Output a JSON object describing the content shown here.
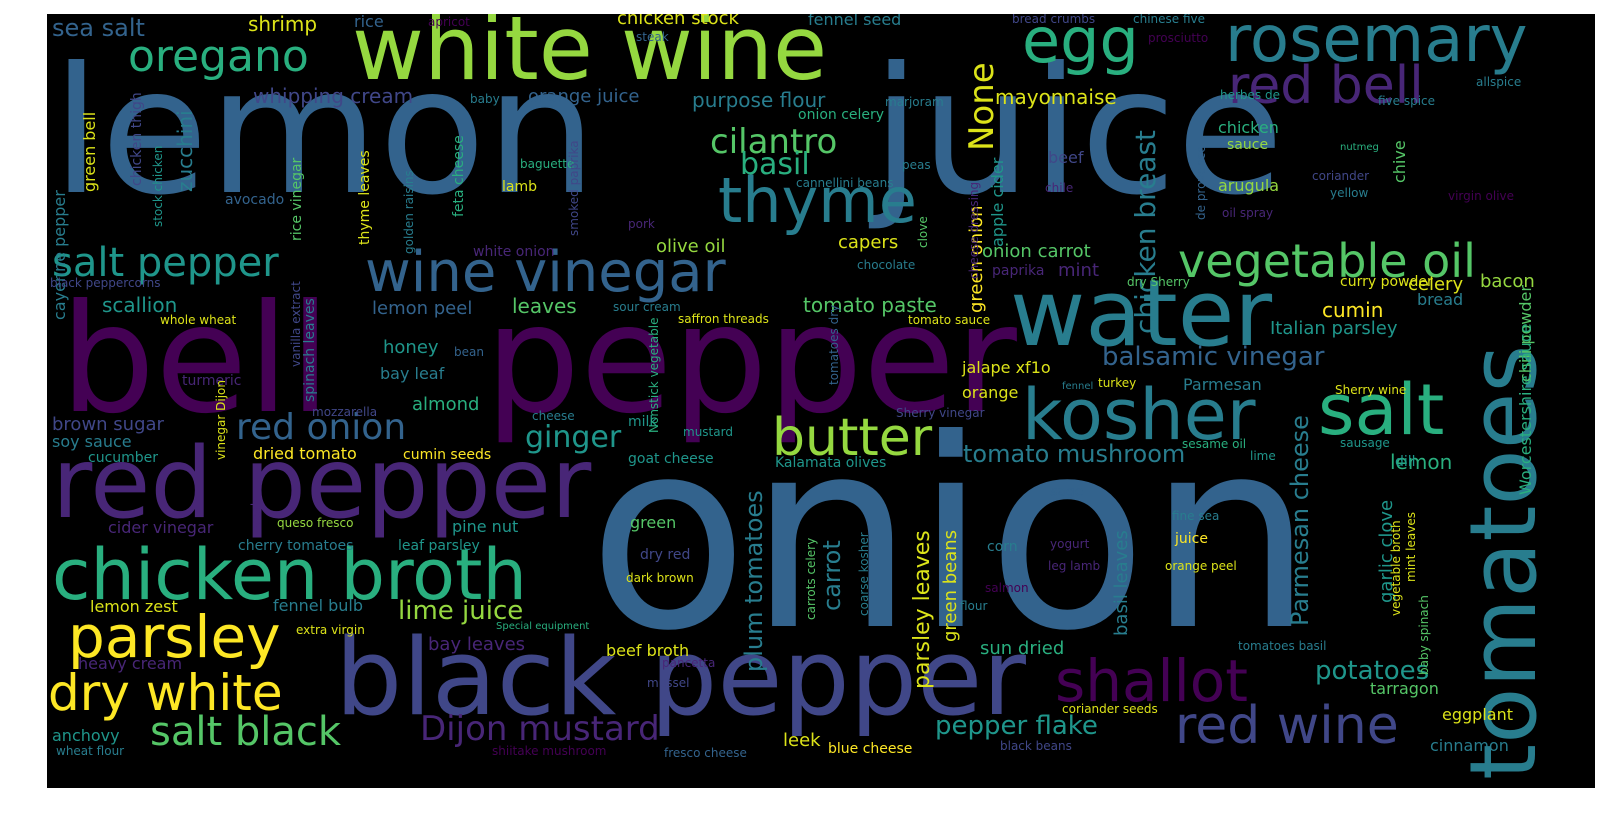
{
  "palette": [
    "#440154",
    "#482677",
    "#404788",
    "#33638d",
    "#287d8e",
    "#1f968b",
    "#29af7f",
    "#55c667",
    "#95d840",
    "#dce319",
    "#fde725"
  ],
  "words": [
    {
      "text": "lemon",
      "color": "#33638d",
      "icon": ""
    },
    {
      "text": "juice",
      "color": "#33638d"
    },
    {
      "text": "onion",
      "color": "#33638d"
    },
    {
      "text": "bell",
      "color": "#440154"
    },
    {
      "text": "pepper",
      "color": "#440154"
    },
    {
      "text": "white wine",
      "color": "#95d840"
    },
    {
      "text": "black pepper",
      "color": "#404788"
    },
    {
      "text": "red pepper",
      "color": "#482677"
    },
    {
      "text": "water",
      "color": "#287d8e"
    },
    {
      "text": "rosemary",
      "color": "#287d8e"
    },
    {
      "text": "kosher",
      "color": "#287d8e"
    },
    {
      "text": "salt",
      "color": "#29af7f"
    },
    {
      "text": "tomatoes",
      "color": "#287d8e"
    },
    {
      "text": "chicken broth",
      "color": "#29af7f"
    },
    {
      "text": "wine vinegar",
      "color": "#33638d"
    },
    {
      "text": "thyme",
      "color": "#287d8e"
    },
    {
      "text": "egg",
      "color": "#29af7f"
    },
    {
      "text": "red bell",
      "color": "#482677"
    },
    {
      "text": "vegetable oil",
      "color": "#55c667"
    },
    {
      "text": "shallot",
      "color": "#440154"
    },
    {
      "text": "parsley",
      "color": "#fde725"
    },
    {
      "text": "dry white",
      "color": "#fde725"
    },
    {
      "text": "butter",
      "color": "#95d840"
    },
    {
      "text": "red wine",
      "color": "#404788"
    },
    {
      "text": "salt pepper",
      "color": "#1f968b"
    },
    {
      "text": "oregano",
      "color": "#29af7f"
    },
    {
      "text": "salt black",
      "color": "#55c667"
    },
    {
      "text": "Dijon mustard",
      "color": "#482677"
    },
    {
      "text": "red onion",
      "color": "#33638d"
    },
    {
      "text": "None",
      "color": "#dce319"
    },
    {
      "text": "cilantro",
      "color": "#55c667"
    },
    {
      "text": "basil",
      "color": "#29af7f"
    },
    {
      "text": "ginger",
      "color": "#1f968b"
    },
    {
      "text": "chicken breast",
      "color": "#287d8e"
    },
    {
      "text": "balsamic vinegar",
      "color": "#33638d"
    },
    {
      "text": "Parmesan cheese",
      "color": "#287d8e"
    },
    {
      "text": "plum tomatoes",
      "color": "#287d8e"
    },
    {
      "text": "pepper flake",
      "color": "#1f968b"
    },
    {
      "text": "potatoes",
      "color": "#1f968b"
    },
    {
      "text": "tomato mushroom",
      "color": "#287d8e"
    },
    {
      "text": "carrot",
      "color": "#287d8e"
    },
    {
      "text": "parsley leaves",
      "color": "#dce319"
    },
    {
      "text": "lime juice",
      "color": "#95d840"
    },
    {
      "text": "sea salt",
      "color": "#33638d"
    },
    {
      "text": "shrimp",
      "color": "#dce319"
    },
    {
      "text": "whipping cream",
      "color": "#404788"
    },
    {
      "text": "orange juice",
      "color": "#33638d"
    },
    {
      "text": "purpose flour",
      "color": "#287d8e"
    },
    {
      "text": "mayonnaise",
      "color": "#dce319"
    },
    {
      "text": "chicken stock",
      "color": "#dce319"
    },
    {
      "text": "fennel seed",
      "color": "#287d8e"
    },
    {
      "text": "rice",
      "color": "#33638d"
    },
    {
      "text": "zucchini",
      "color": "#287d8e"
    },
    {
      "text": "green bell",
      "color": "#dce319"
    },
    {
      "text": "cayenne pepper",
      "color": "#287d8e"
    },
    {
      "text": "scallion",
      "color": "#1f968b"
    },
    {
      "text": "lemon peel",
      "color": "#33638d"
    },
    {
      "text": "leaves",
      "color": "#55c667"
    },
    {
      "text": "tomato paste",
      "color": "#55c667"
    },
    {
      "text": "cumin",
      "color": "#fde725"
    },
    {
      "text": "celery",
      "color": "#dce319"
    },
    {
      "text": "bacon",
      "color": "#95d840"
    },
    {
      "text": "Italian parsley",
      "color": "#1f968b"
    },
    {
      "text": "bread",
      "color": "#287d8e"
    },
    {
      "text": "olive oil",
      "color": "#95d840"
    },
    {
      "text": "capers",
      "color": "#dce319"
    },
    {
      "text": "onion carrot",
      "color": "#55c667"
    },
    {
      "text": "mint",
      "color": "#482677"
    },
    {
      "text": "green onion",
      "color": "#fde725"
    },
    {
      "text": "apple cider",
      "color": "#1f968b"
    },
    {
      "text": "honey",
      "color": "#1f968b"
    },
    {
      "text": "bay leaf",
      "color": "#287d8e"
    },
    {
      "text": "almond",
      "color": "#29af7f"
    },
    {
      "text": "brown sugar",
      "color": "#404788"
    },
    {
      "text": "soy sauce",
      "color": "#287d8e"
    },
    {
      "text": "cucumber",
      "color": "#1f968b"
    },
    {
      "text": "dried tomato",
      "color": "#fde725"
    },
    {
      "text": "cumin seeds",
      "color": "#fde725"
    },
    {
      "text": "jalape xf1o",
      "color": "#dce319"
    },
    {
      "text": "orange",
      "color": "#dce319"
    },
    {
      "text": "Parmesan",
      "color": "#287d8e"
    },
    {
      "text": "lemon",
      "color": "#29af7f"
    },
    {
      "text": "chili powder",
      "color": "#55c667"
    },
    {
      "text": "Worcestershire sauce",
      "color": "#29af7f"
    },
    {
      "text": "garlic clove",
      "color": "#1f968b"
    },
    {
      "text": "basil leaves",
      "color": "#287d8e"
    },
    {
      "text": "green beans",
      "color": "#dce319"
    },
    {
      "text": "sage",
      "color": "#33638d"
    },
    {
      "text": "dill",
      "color": "#1f968b"
    },
    {
      "text": "sun dried",
      "color": "#29af7f"
    },
    {
      "text": "eggplant",
      "color": "#dce319"
    },
    {
      "text": "tarragon",
      "color": "#55c667"
    },
    {
      "text": "cinnamon",
      "color": "#287d8e"
    },
    {
      "text": "leek",
      "color": "#dce319"
    },
    {
      "text": "beef broth",
      "color": "#dce319"
    },
    {
      "text": "bay leaves",
      "color": "#482677"
    },
    {
      "text": "lemon zest",
      "color": "#dce319"
    },
    {
      "text": "fennel bulb",
      "color": "#287d8e"
    },
    {
      "text": "pine nut",
      "color": "#1f968b"
    },
    {
      "text": "cider vinegar",
      "color": "#482677"
    },
    {
      "text": "cherry tomatoes",
      "color": "#287d8e"
    },
    {
      "text": "leaf parsley",
      "color": "#1f968b"
    },
    {
      "text": "anchovy",
      "color": "#1f968b"
    },
    {
      "text": "heavy cream",
      "color": "#482677"
    },
    {
      "text": "milk",
      "color": "#1f968b"
    },
    {
      "text": "green",
      "color": "#55c667"
    },
    {
      "text": "chicken",
      "color": "#29af7f"
    },
    {
      "text": "sauce",
      "color": "#95d840"
    },
    {
      "text": "arugula",
      "color": "#95d840"
    },
    {
      "text": "chive",
      "color": "#55c667"
    },
    {
      "text": "beef",
      "color": "#404788"
    },
    {
      "text": "curry powder",
      "color": "#dce319"
    },
    {
      "text": "turkey",
      "color": "#dce319"
    },
    {
      "text": "juice",
      "color": "#fde725"
    },
    {
      "text": "corn",
      "color": "#287d8e"
    },
    {
      "text": "orange peel",
      "color": "#dce319"
    },
    {
      "text": "coriander seeds",
      "color": "#dce319"
    },
    {
      "text": "blue cheese",
      "color": "#fde725"
    },
    {
      "text": "mustard",
      "color": "#1f968b"
    },
    {
      "text": "goat cheese",
      "color": "#1f968b"
    },
    {
      "text": "Kalamata olives",
      "color": "#1f968b"
    },
    {
      "text": "sesame oil",
      "color": "#29af7f"
    },
    {
      "text": "lime",
      "color": "#1f968b"
    },
    {
      "text": "vegetable broth",
      "color": "#dce319"
    },
    {
      "text": "mint leaves",
      "color": "#dce319"
    },
    {
      "text": "baby spinach",
      "color": "#55c667"
    },
    {
      "text": "Sherry wine",
      "color": "#dce319"
    },
    {
      "text": "sausage",
      "color": "#1f968b"
    },
    {
      "text": "apricot",
      "color": "#440154"
    },
    {
      "text": "steak",
      "color": "#33638d"
    },
    {
      "text": "bread crumbs",
      "color": "#404788"
    },
    {
      "text": "chinese five",
      "color": "#287d8e"
    },
    {
      "text": "prosciutto",
      "color": "#440154"
    },
    {
      "text": "herbes de",
      "color": "#1f968b"
    },
    {
      "text": "allspice",
      "color": "#287d8e"
    },
    {
      "text": "five spice",
      "color": "#287d8e"
    },
    {
      "text": "marjoram",
      "color": "#287d8e"
    },
    {
      "text": "baby",
      "color": "#287d8e"
    },
    {
      "text": "onion celery",
      "color": "#29af7f"
    },
    {
      "text": "nutmeg",
      "color": "#29af7f"
    },
    {
      "text": "coriander",
      "color": "#404788"
    },
    {
      "text": "yellow",
      "color": "#287d8e"
    },
    {
      "text": "virgin olive",
      "color": "#440154"
    },
    {
      "text": "oil spray",
      "color": "#482677"
    },
    {
      "text": "de provence",
      "color": "#33638d"
    },
    {
      "text": "chile",
      "color": "#482677"
    },
    {
      "text": "peas",
      "color": "#287d8e"
    },
    {
      "text": "cannellini beans",
      "color": "#287d8e"
    },
    {
      "text": "baguette",
      "color": "#29af7f"
    },
    {
      "text": "lamb",
      "color": "#dce319"
    },
    {
      "text": "feta cheese",
      "color": "#29af7f"
    },
    {
      "text": "golden raisins",
      "color": "#287d8e"
    },
    {
      "text": "smoked paprika",
      "color": "#404788"
    },
    {
      "text": "pork",
      "color": "#482677"
    },
    {
      "text": "rice vinegar",
      "color": "#55c667"
    },
    {
      "text": "thyme leaves",
      "color": "#dce319"
    },
    {
      "text": "avocado",
      "color": "#33638d"
    },
    {
      "text": "chicken thigh",
      "color": "#404788"
    },
    {
      "text": "stock chicken",
      "color": "#1f968b"
    },
    {
      "text": "white onion",
      "color": "#482677"
    },
    {
      "text": "chocolate",
      "color": "#287d8e"
    },
    {
      "text": "clove",
      "color": "#55c667"
    },
    {
      "text": "cheese dressing",
      "color": "#482677"
    },
    {
      "text": "paprika",
      "color": "#482677"
    },
    {
      "text": "dry Sherry",
      "color": "#55c667"
    },
    {
      "text": "black peppercorns",
      "color": "#404788"
    },
    {
      "text": "whole wheat",
      "color": "#dce319"
    },
    {
      "text": "vanilla extract",
      "color": "#404788"
    },
    {
      "text": "spinach leaves",
      "color": "#287d8e"
    },
    {
      "text": "sour cream",
      "color": "#287d8e"
    },
    {
      "text": "saffron threads",
      "color": "#dce319"
    },
    {
      "text": "tomato sauce",
      "color": "#dce319"
    },
    {
      "text": "tomatoes dry",
      "color": "#33638d"
    },
    {
      "text": "Nonstick vegetable",
      "color": "#29af7f"
    },
    {
      "text": "bean",
      "color": "#33638d"
    },
    {
      "text": "turmeric",
      "color": "#482677"
    },
    {
      "text": "vinegar Dijon",
      "color": "#dce319"
    },
    {
      "text": "mozzarella",
      "color": "#404788"
    },
    {
      "text": "cheese",
      "color": "#287d8e"
    },
    {
      "text": "fennel",
      "color": "#287d8e"
    },
    {
      "text": "Sherry vinegar",
      "color": "#404788"
    },
    {
      "text": "veal",
      "color": "#482677"
    },
    {
      "text": "queso fresco",
      "color": "#95d840"
    },
    {
      "text": "extra virgin",
      "color": "#dce319"
    },
    {
      "text": "Special equipment",
      "color": "#29af7f"
    },
    {
      "text": "dry red",
      "color": "#404788"
    },
    {
      "text": "dark brown",
      "color": "#dce319"
    },
    {
      "text": "carrots celery",
      "color": "#55c667"
    },
    {
      "text": "coarse kosher",
      "color": "#287d8e"
    },
    {
      "text": "salmon",
      "color": "#440154"
    },
    {
      "text": "flour",
      "color": "#287d8e"
    },
    {
      "text": "yogurt",
      "color": "#482677"
    },
    {
      "text": "leg lamb",
      "color": "#482677"
    },
    {
      "text": "fine sea",
      "color": "#287d8e"
    },
    {
      "text": "tomatoes basil",
      "color": "#287d8e"
    },
    {
      "text": "pancetta",
      "color": "#482677"
    },
    {
      "text": "mussel",
      "color": "#404788"
    },
    {
      "text": "shiitake mushroom",
      "color": "#440154"
    },
    {
      "text": "fresco cheese",
      "color": "#33638d"
    },
    {
      "text": "wheat flour",
      "color": "#287d8e"
    },
    {
      "text": "black beans",
      "color": "#404788"
    }
  ]
}
